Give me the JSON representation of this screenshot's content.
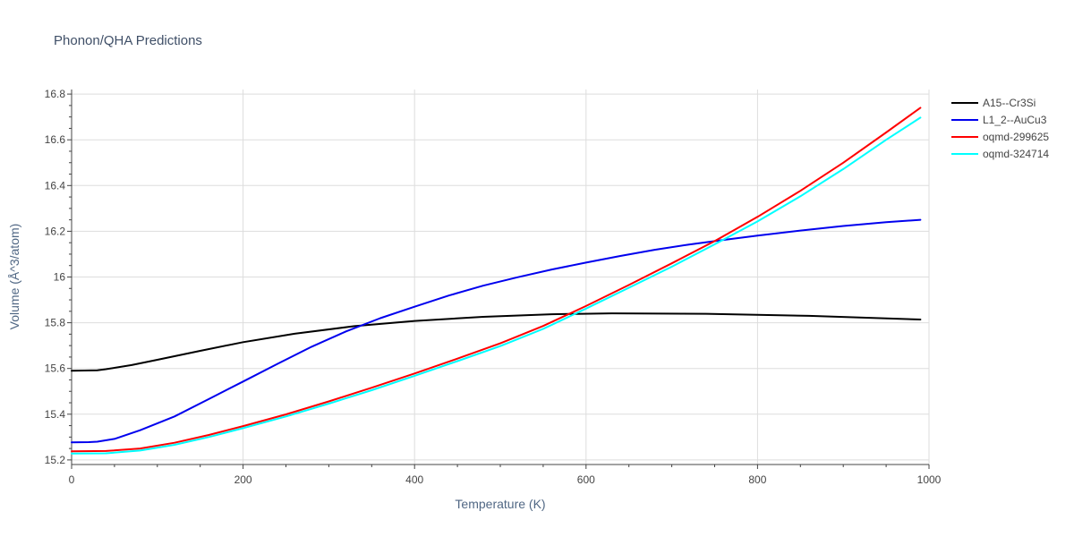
{
  "chart_data": {
    "type": "line",
    "title": "Phonon/QHA Predictions",
    "xlabel": "Temperature (K)",
    "ylabel": "Volume (Å^3/atom)",
    "xlim": [
      0,
      1000
    ],
    "ylim": [
      15.18,
      16.82
    ],
    "x_ticks": [
      0,
      200,
      400,
      600,
      800,
      1000
    ],
    "x_tick_labels": [
      "0",
      "200",
      "400",
      "600",
      "800",
      "1000"
    ],
    "y_ticks": [
      15.2,
      15.4,
      15.6,
      15.8,
      16.0,
      16.2,
      16.4,
      16.6,
      16.8
    ],
    "y_tick_labels": [
      "15.2",
      "15.4",
      "15.6",
      "15.8",
      "16",
      "16.2",
      "16.4",
      "16.6",
      "16.8"
    ],
    "grid": true,
    "legend_position": "right",
    "series": [
      {
        "name": "A15--Cr3Si",
        "color": "#000000",
        "x": [
          0,
          30,
          40,
          70,
          100,
          150,
          200,
          260,
          330,
          400,
          480,
          560,
          630,
          740,
          860,
          990
        ],
        "y": [
          15.59,
          15.592,
          15.597,
          15.615,
          15.638,
          15.677,
          15.715,
          15.752,
          15.785,
          15.808,
          15.826,
          15.837,
          15.841,
          15.839,
          15.83,
          15.814
        ]
      },
      {
        "name": "L1_2--AuCu3",
        "color": "#0000ee",
        "x": [
          0,
          20,
          30,
          50,
          80,
          120,
          160,
          200,
          240,
          280,
          320,
          360,
          400,
          440,
          480,
          520,
          560,
          600,
          640,
          680,
          720,
          760,
          800,
          850,
          900,
          950,
          990
        ],
        "y": [
          15.277,
          15.278,
          15.28,
          15.292,
          15.33,
          15.39,
          15.466,
          15.543,
          15.62,
          15.695,
          15.762,
          15.82,
          15.87,
          15.919,
          15.962,
          15.999,
          16.033,
          16.063,
          16.092,
          16.119,
          16.142,
          16.162,
          16.181,
          16.203,
          16.223,
          16.24,
          16.25
        ]
      },
      {
        "name": "oqmd-299625",
        "color": "#ff0000",
        "x": [
          0,
          40,
          80,
          120,
          160,
          200,
          250,
          300,
          350,
          400,
          450,
          500,
          550,
          600,
          650,
          700,
          750,
          800,
          850,
          900,
          950,
          990
        ],
        "y": [
          15.238,
          15.239,
          15.25,
          15.275,
          15.309,
          15.348,
          15.399,
          15.456,
          15.516,
          15.578,
          15.643,
          15.71,
          15.786,
          15.873,
          15.965,
          16.06,
          16.157,
          16.263,
          16.377,
          16.5,
          16.632,
          16.74
        ]
      },
      {
        "name": "oqmd-324714",
        "color": "#00ffff",
        "x": [
          0,
          40,
          80,
          120,
          160,
          200,
          250,
          300,
          350,
          400,
          450,
          500,
          550,
          600,
          650,
          700,
          750,
          800,
          850,
          900,
          950,
          990
        ],
        "y": [
          15.228,
          15.229,
          15.241,
          15.266,
          15.3,
          15.339,
          15.39,
          15.446,
          15.505,
          15.568,
          15.632,
          15.698,
          15.773,
          15.862,
          15.953,
          16.045,
          16.143,
          16.243,
          16.353,
          16.472,
          16.6,
          16.697
        ]
      }
    ]
  }
}
